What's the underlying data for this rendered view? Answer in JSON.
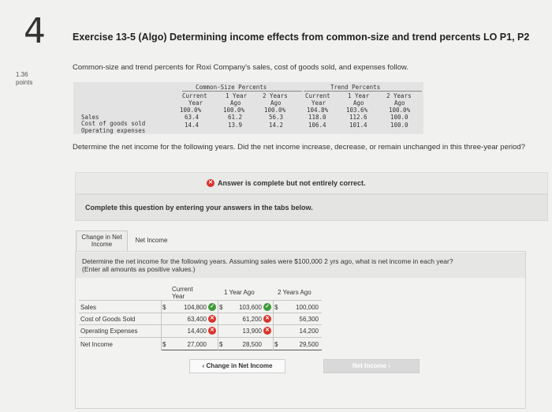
{
  "question": {
    "number": "4",
    "points_value": "1.36",
    "points_label": "points",
    "title": "Exercise 13-5 (Algo) Determining income effects from common-size and trend percents LO P1, P2",
    "intro": "Common-size and trend percents for Roxi Company's sales, cost of goods sold, and expenses follow."
  },
  "data_table": {
    "group_common": "Common-Size Percents",
    "group_trend": "Trend Percents",
    "col_current_1": "Current",
    "col_current_2": "Year",
    "col_1yr_1": "1 Year",
    "col_1yr_2": "Ago",
    "col_2yr_1": "2 Years",
    "col_2yr_2": "Ago",
    "rows": [
      {
        "label": "Sales",
        "cs": [
          "100.0%",
          "100.0%",
          "100.0%"
        ],
        "tr": [
          "104.8%",
          "103.6%",
          "100.0%"
        ]
      },
      {
        "label": "Cost of goods sold",
        "cs": [
          "63.4",
          "61.2",
          "56.3"
        ],
        "tr": [
          "118.0",
          "112.6",
          "100.0"
        ]
      },
      {
        "label": "Operating expenses",
        "cs": [
          "14.4",
          "13.9",
          "14.2"
        ],
        "tr": [
          "106.4",
          "101.4",
          "100.0"
        ]
      }
    ]
  },
  "determine": "Determine the net income for the following years. Did the net income increase, decrease, or remain unchanged in this three-year period?",
  "answer_status": "Answer is complete but not entirely correct.",
  "complete_text": "Complete this question by entering your answers in the tabs below.",
  "tabs": {
    "tab1": "Change in Net Income",
    "tab2": "Net Income"
  },
  "instructions_line1": "Determine the net income for the following years. Assuming sales were $100,000 2 yrs ago, what is net income in each year?",
  "instructions_line2": "(Enter all amounts as positive values.)",
  "answer_table": {
    "headers": {
      "current_1": "Current",
      "current_2": "Year",
      "one_year": "1 Year Ago",
      "two_years": "2 Years Ago"
    },
    "dollar": "$",
    "rows": [
      {
        "label": "Sales",
        "current": "104,800",
        "one": "103,600",
        "two": "100,000"
      },
      {
        "label": "Cost of Goods Sold",
        "current": "63,400",
        "one": "61,200",
        "two": "56,300"
      },
      {
        "label": "Operating Expenses",
        "current": "14,400",
        "one": "13,900",
        "two": "14,200"
      },
      {
        "label": "Net Income",
        "current": "27,000",
        "one": "28,500",
        "two": "29,500"
      }
    ]
  },
  "buttons": {
    "prev": "Change in Net Income",
    "next": "Net Income"
  },
  "colors": {
    "error": "#d8332a",
    "correct": "#3d9b3a"
  }
}
